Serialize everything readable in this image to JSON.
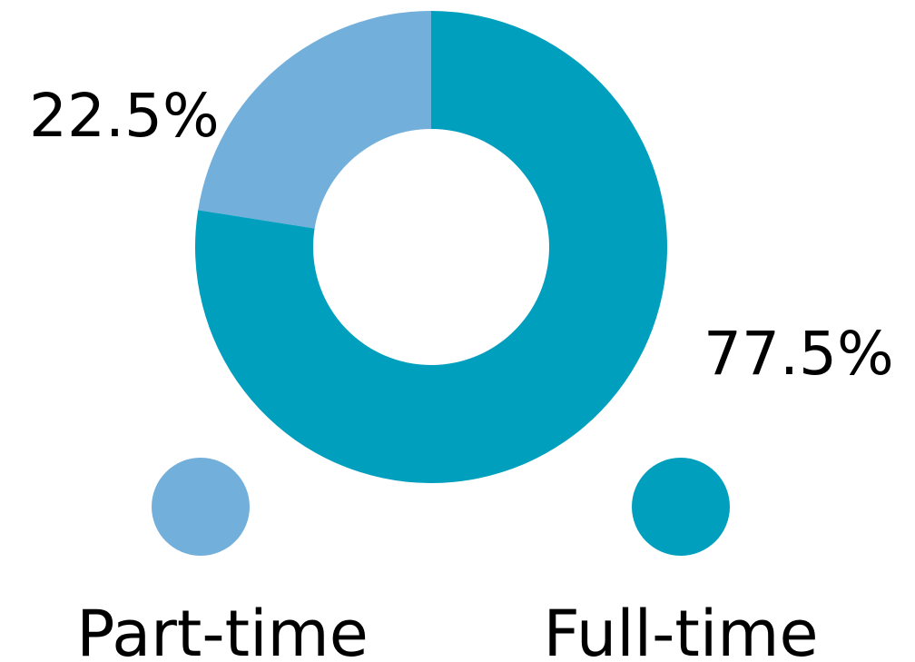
{
  "chart_data": {
    "type": "pie",
    "donut": true,
    "slices": [
      {
        "label": "Part-time",
        "value": 22.5,
        "value_label": "22.5%",
        "color": "#73afdb"
      },
      {
        "label": "Full-time",
        "value": 77.5,
        "value_label": "77.5%",
        "color": "#009fbd"
      }
    ],
    "legend_position": "bottom"
  }
}
